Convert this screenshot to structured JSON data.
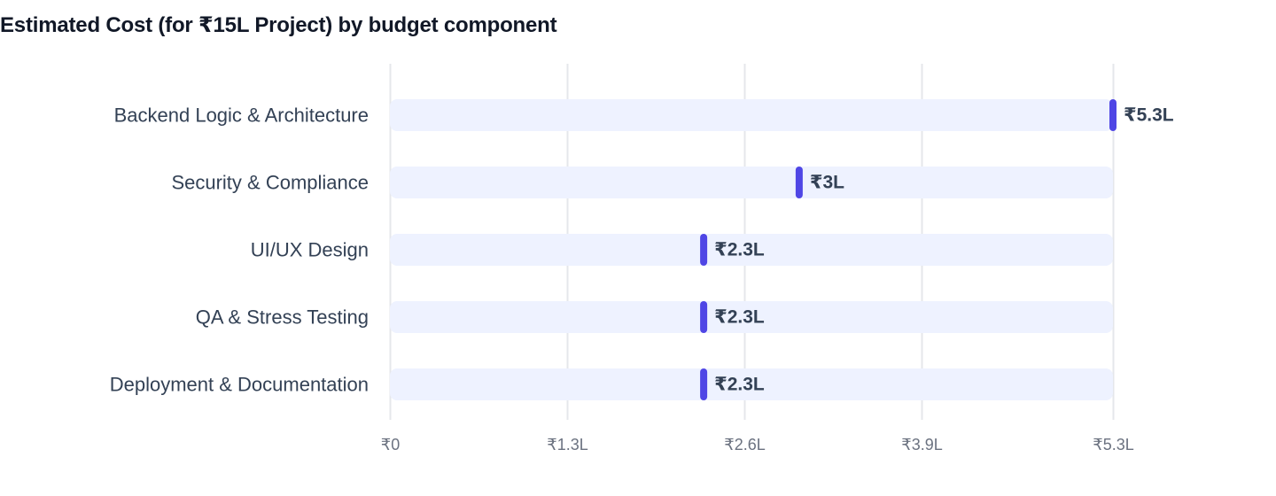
{
  "title": "Estimated Cost (for ₹15L Project) by budget component",
  "colors": {
    "marker": "#4f46e5",
    "track": "#eef2ff",
    "grid": "#e5e7eb",
    "axis_text": "#6b7280",
    "label_text": "#334155",
    "title_text": "#111827"
  },
  "chart_data": {
    "type": "bar",
    "title": "Estimated Cost (for ₹15L Project) by budget component",
    "orientation": "horizontal",
    "unit": "₹ lakh",
    "categories": [
      "Backend Logic & Architecture",
      "Security & Compliance",
      "UI/UX Design",
      "QA & Stress Testing",
      "Deployment & Documentation"
    ],
    "values": [
      5.3,
      3,
      2.3,
      2.3,
      2.3
    ],
    "value_labels": [
      "₹5.3L",
      "₹3L",
      "₹2.3L",
      "₹2.3L",
      "₹2.3L"
    ],
    "xlim": [
      0,
      5.3
    ],
    "x_ticks": [
      0,
      1.3,
      2.6,
      3.9,
      5.3
    ],
    "x_tick_labels": [
      "₹0",
      "₹1.3L",
      "₹2.6L",
      "₹3.9L",
      "₹5.3L"
    ],
    "grid": true,
    "legend": "none"
  }
}
